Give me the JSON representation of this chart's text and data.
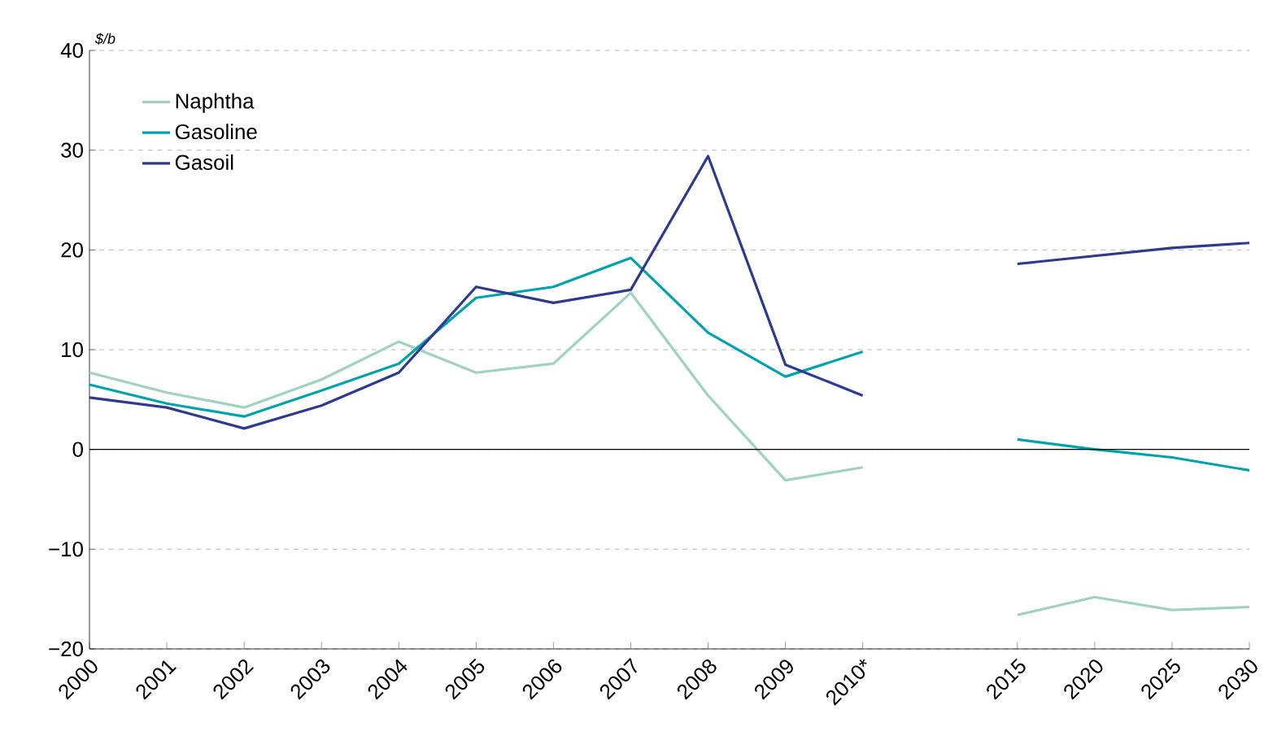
{
  "chart_data": {
    "type": "line",
    "ylabel": "$/b",
    "categories": [
      "2000",
      "2001",
      "2002",
      "2003",
      "2004",
      "2005",
      "2006",
      "2007",
      "2008",
      "2009",
      "2010*",
      null,
      "2015",
      "2020",
      "2025",
      "2030"
    ],
    "series": [
      {
        "name": "Naphtha",
        "color": "#9fd3bf",
        "values": [
          7.7,
          5.7,
          4.2,
          7.0,
          10.8,
          7.7,
          8.6,
          15.7,
          5.4,
          -3.1,
          -1.8,
          null,
          -16.6,
          -14.8,
          -16.1,
          -15.8
        ]
      },
      {
        "name": "Gasoline",
        "color": "#00a3ad",
        "values": [
          6.5,
          4.6,
          3.3,
          5.9,
          8.6,
          15.2,
          16.3,
          19.2,
          11.7,
          7.3,
          9.8,
          null,
          1.0,
          0.0,
          -0.8,
          -2.1
        ]
      },
      {
        "name": "Gasoil",
        "color": "#2e3a8c",
        "values": [
          5.2,
          4.2,
          2.1,
          4.4,
          7.7,
          16.3,
          14.7,
          16.0,
          29.4,
          8.5,
          5.4,
          null,
          18.6,
          19.4,
          20.2,
          20.7
        ]
      }
    ],
    "ylim": [
      -20,
      40
    ],
    "yticks": [
      {
        "value": -20,
        "label": "−20"
      },
      {
        "value": -10,
        "label": "−10"
      },
      0,
      10,
      20,
      30,
      40
    ],
    "grid": "y",
    "legend": "top left",
    "marker": "none",
    "line_style": "solid",
    "ref_lines": [
      {
        "axis": "y",
        "value": 0,
        "color": "#000000"
      }
    ]
  }
}
